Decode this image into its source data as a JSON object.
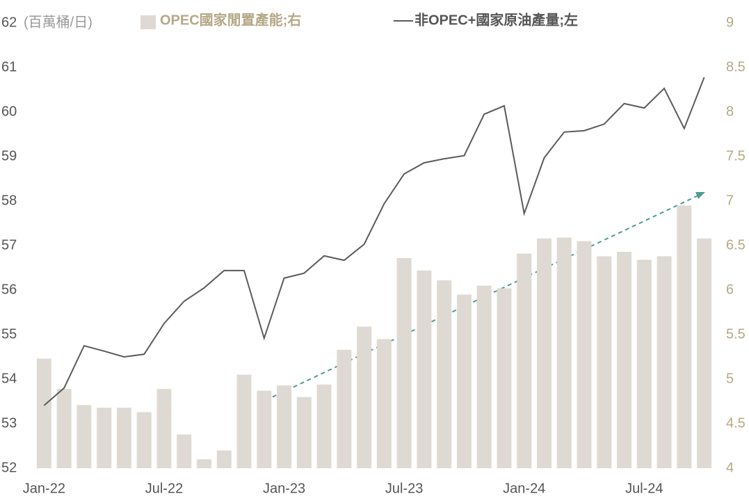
{
  "chart_data": {
    "type": "bar_line",
    "y_label": "(百萬桶/日)",
    "categories": [
      "Jan-22",
      null,
      null,
      null,
      null,
      null,
      "Jul-22",
      null,
      null,
      null,
      null,
      null,
      "Jan-23",
      null,
      null,
      null,
      null,
      null,
      "Jul-23",
      null,
      null,
      null,
      null,
      null,
      "Jan-24",
      null,
      null,
      null,
      null,
      null,
      "Jul-24",
      null,
      null,
      null
    ],
    "series": [
      {
        "name": "OPEC國家閒置產能;右",
        "type": "bar",
        "axis": "y2",
        "color": "#dedad3",
        "values": [
          5.23,
          4.89,
          4.71,
          4.68,
          4.68,
          4.63,
          4.89,
          4.38,
          4.1,
          4.2,
          5.05,
          4.87,
          4.93,
          4.8,
          4.94,
          5.33,
          5.59,
          5.45,
          6.36,
          6.22,
          6.11,
          5.95,
          6.05,
          6.02,
          6.41,
          6.58,
          6.59,
          6.55,
          6.38,
          6.43,
          6.34,
          6.38,
          6.95,
          6.58
        ]
      },
      {
        "name": "非OPEC+國家原油產量;左",
        "type": "line",
        "axis": "y",
        "color": "#5a5a5a",
        "values": [
          53.41,
          53.8,
          54.75,
          54.63,
          54.5,
          54.56,
          55.25,
          55.75,
          56.05,
          56.44,
          56.44,
          54.92,
          56.27,
          56.38,
          56.77,
          56.67,
          57.03,
          57.94,
          58.61,
          58.86,
          58.95,
          59.02,
          59.95,
          60.14,
          57.72,
          58.97,
          59.55,
          59.58,
          59.73,
          60.19,
          60.09,
          60.53,
          59.63,
          60.78
        ]
      }
    ],
    "ylim": [
      52,
      62
    ],
    "yticks": [
      52,
      53,
      54,
      55,
      56,
      57,
      58,
      59,
      60,
      61,
      62
    ],
    "y2lim": [
      4,
      9
    ],
    "y2ticks": [
      4,
      4.5,
      5,
      5.5,
      6,
      6.5,
      7,
      7.5,
      8,
      8.5,
      9
    ],
    "y2_color": "#b5a888"
  }
}
